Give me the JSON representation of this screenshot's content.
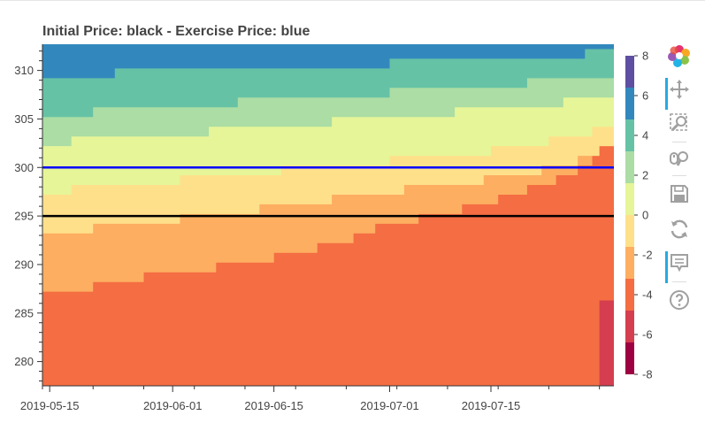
{
  "title": "Initial Price: black - Exercise Price: blue",
  "chart_data": {
    "type": "heatmap",
    "title": "Initial Price: black - Exercise Price: blue",
    "x_axis": {
      "type": "datetime",
      "range": [
        "2019-05-14",
        "2019-08-01"
      ],
      "tick_labels": [
        "2019-05-15",
        "2019-06-01",
        "2019-06-15",
        "2019-07-01",
        "2019-07-15"
      ]
    },
    "y_axis": {
      "range": [
        277.5,
        312.7
      ],
      "ticks": [
        280,
        285,
        290,
        295,
        300,
        305,
        310
      ]
    },
    "horizontal_lines": [
      {
        "value": 295,
        "color": "#000000",
        "label": "Initial Price"
      },
      {
        "value": 300,
        "color": "#0000ff",
        "label": "Exercise Price"
      }
    ],
    "color_bar": {
      "low": -8,
      "high": 8,
      "ticks": [
        -8,
        -6,
        -4,
        -2,
        0,
        2,
        4,
        6,
        8
      ],
      "palette": [
        "#9e0142",
        "#d53e4f",
        "#f46d43",
        "#fdae61",
        "#fee08b",
        "#e6f598",
        "#abdda4",
        "#66c2a5",
        "#3288bd",
        "#5e4fa2"
      ]
    },
    "band_boundaries": [
      {
        "level": "-4 to -2",
        "points": [
          [
            "2019-05-14",
            287.2
          ],
          [
            "2019-05-21",
            287.2
          ],
          [
            "2019-05-21",
            288.2
          ],
          [
            "2019-05-28",
            288.2
          ],
          [
            "2019-05-28",
            289.2
          ],
          [
            "2019-06-07",
            289.2
          ],
          [
            "2019-06-07",
            290.2
          ],
          [
            "2019-06-15",
            290.2
          ],
          [
            "2019-06-15",
            291.2
          ],
          [
            "2019-06-21",
            291.2
          ],
          [
            "2019-06-21",
            292.2
          ],
          [
            "2019-06-26",
            292.2
          ],
          [
            "2019-06-26",
            293.2
          ],
          [
            "2019-06-29",
            293.2
          ],
          [
            "2019-06-29",
            294.2
          ],
          [
            "2019-07-05",
            294.2
          ],
          [
            "2019-07-05",
            295.2
          ],
          [
            "2019-07-11",
            295.2
          ],
          [
            "2019-07-11",
            296.2
          ],
          [
            "2019-07-16",
            296.2
          ],
          [
            "2019-07-16",
            297.2
          ],
          [
            "2019-07-20",
            297.2
          ],
          [
            "2019-07-20",
            298.2
          ],
          [
            "2019-07-24",
            298.2
          ],
          [
            "2019-07-24",
            299.2
          ],
          [
            "2019-07-27",
            299.2
          ],
          [
            "2019-07-27",
            300.2
          ],
          [
            "2019-07-29",
            300.2
          ],
          [
            "2019-07-29",
            301.2
          ],
          [
            "2019-07-30",
            301.2
          ],
          [
            "2019-07-30",
            302.2
          ],
          [
            "2019-08-01",
            302.2
          ]
        ]
      },
      {
        "level": "-2 to 0",
        "points": [
          [
            "2019-05-14",
            293.2
          ],
          [
            "2019-05-21",
            293.2
          ],
          [
            "2019-05-21",
            294.2
          ],
          [
            "2019-06-02",
            294.2
          ],
          [
            "2019-06-02",
            295.2
          ],
          [
            "2019-06-13",
            295.2
          ],
          [
            "2019-06-13",
            296.2
          ],
          [
            "2019-06-23",
            296.2
          ],
          [
            "2019-06-23",
            297.2
          ],
          [
            "2019-07-03",
            297.2
          ],
          [
            "2019-07-03",
            298.2
          ],
          [
            "2019-07-14",
            298.2
          ],
          [
            "2019-07-14",
            299.2
          ],
          [
            "2019-07-22",
            299.2
          ],
          [
            "2019-07-22",
            300.2
          ],
          [
            "2019-07-27",
            300.2
          ],
          [
            "2019-07-27",
            301.2
          ],
          [
            "2019-07-30",
            301.2
          ],
          [
            "2019-07-30",
            302.2
          ],
          [
            "2019-08-01",
            302.2
          ]
        ]
      },
      {
        "level": "0 to 2",
        "points": [
          [
            "2019-05-14",
            297.2
          ],
          [
            "2019-05-18",
            297.2
          ],
          [
            "2019-05-18",
            298.2
          ],
          [
            "2019-06-02",
            298.2
          ],
          [
            "2019-06-02",
            299.2
          ],
          [
            "2019-06-16",
            299.2
          ],
          [
            "2019-06-16",
            300.2
          ],
          [
            "2019-07-01",
            300.2
          ],
          [
            "2019-07-01",
            301.2
          ],
          [
            "2019-07-15",
            301.2
          ],
          [
            "2019-07-15",
            302.2
          ],
          [
            "2019-07-23",
            302.2
          ],
          [
            "2019-07-23",
            303.2
          ],
          [
            "2019-07-29",
            303.2
          ],
          [
            "2019-07-29",
            304.2
          ],
          [
            "2019-08-01",
            304.2
          ]
        ]
      },
      {
        "level": "2 to 4",
        "points": [
          [
            "2019-05-14",
            302.2
          ],
          [
            "2019-05-18",
            302.2
          ],
          [
            "2019-05-18",
            303.2
          ],
          [
            "2019-06-06",
            303.2
          ],
          [
            "2019-06-06",
            304.2
          ],
          [
            "2019-06-23",
            304.2
          ],
          [
            "2019-06-23",
            305.2
          ],
          [
            "2019-07-10",
            305.2
          ],
          [
            "2019-07-10",
            306.2
          ],
          [
            "2019-07-25",
            306.2
          ],
          [
            "2019-07-25",
            307.2
          ],
          [
            "2019-08-01",
            307.2
          ]
        ]
      },
      {
        "level": "4 to 6",
        "points": [
          [
            "2019-05-14",
            305.2
          ],
          [
            "2019-05-21",
            305.2
          ],
          [
            "2019-05-21",
            306.2
          ],
          [
            "2019-06-10",
            306.2
          ],
          [
            "2019-06-10",
            307.2
          ],
          [
            "2019-07-01",
            307.2
          ],
          [
            "2019-07-01",
            308.2
          ],
          [
            "2019-07-20",
            308.2
          ],
          [
            "2019-07-20",
            309.2
          ],
          [
            "2019-08-01",
            309.2
          ]
        ]
      },
      {
        "level": "6 to 8",
        "points": [
          [
            "2019-05-14",
            309.2
          ],
          [
            "2019-05-24",
            309.2
          ],
          [
            "2019-05-24",
            310.2
          ],
          [
            "2019-07-01",
            310.2
          ],
          [
            "2019-07-01",
            311.2
          ],
          [
            "2019-07-28",
            311.2
          ],
          [
            "2019-07-28",
            312.2
          ],
          [
            "2019-08-01",
            312.2
          ]
        ]
      }
    ],
    "low_corner": {
      "level": "-6 to -4",
      "x_range": [
        "2019-07-30",
        "2019-08-01"
      ],
      "y_range": [
        277.5,
        286.3
      ]
    }
  },
  "toolbar": {
    "tools": [
      {
        "name": "bokeh-logo",
        "icon": "bokeh-logo-icon"
      },
      {
        "name": "pan",
        "icon": "pan-icon",
        "active": true
      },
      {
        "name": "box-zoom",
        "icon": "box-zoom-icon"
      },
      {
        "name": "wheel-zoom",
        "icon": "wheel-zoom-icon"
      },
      {
        "name": "save",
        "icon": "save-icon"
      },
      {
        "name": "reset",
        "icon": "reset-icon"
      },
      {
        "name": "hover",
        "icon": "hover-icon",
        "active": true
      },
      {
        "name": "help",
        "icon": "help-icon"
      }
    ]
  }
}
